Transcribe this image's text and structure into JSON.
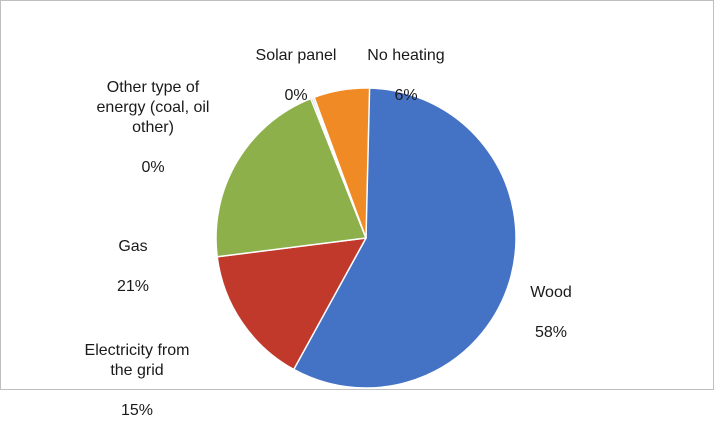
{
  "chart_data": {
    "type": "pie",
    "slices": [
      {
        "label": "Wood",
        "pct_label": "58%",
        "value": 58,
        "color": "#4472c4"
      },
      {
        "label": "Electricity  from\nthe grid",
        "pct_label": "15%",
        "value": 15,
        "color": "#c0392b"
      },
      {
        "label": "Gas",
        "pct_label": "21%",
        "value": 21,
        "color": "#8db04a"
      },
      {
        "label": "Other type of\nenergy (coal, oil\nother)",
        "pct_label": "0%",
        "value": 0,
        "color": "#7a5fa0"
      },
      {
        "label": "Solar panel",
        "pct_label": "0%",
        "value": 0,
        "color": "#3ba7c5"
      },
      {
        "label": "No heating",
        "pct_label": "6%",
        "value": 6,
        "color": "#f08a24"
      }
    ]
  }
}
